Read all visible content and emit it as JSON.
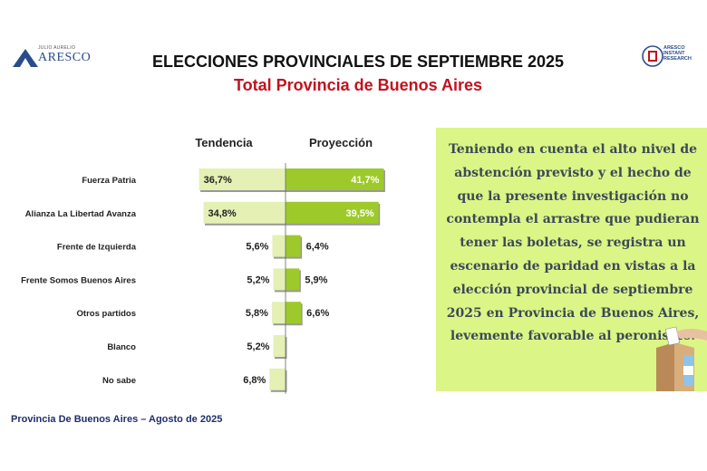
{
  "header": {
    "title": "ELECCIONES PROVINCIALES DE SEPTIEMBRE 2025",
    "subtitle": "Total Provincia de Buenos Aires"
  },
  "logos": {
    "left_small": "JULIO AURELIO",
    "left_big": "ARESCO",
    "right_lines": [
      "ARESCO",
      "INSTANT",
      "RESEARCH"
    ]
  },
  "chart_data": {
    "type": "bar",
    "categories": [
      "Fuerza Patria",
      "Alianza La Libertad Avanza",
      "Frente de Izquierda",
      "Frente Somos Buenos Aires",
      "Otros partidos",
      "Blanco",
      "No sabe"
    ],
    "series": [
      {
        "name": "Tendencia",
        "values": [
          36.7,
          34.8,
          5.6,
          5.2,
          5.8,
          5.2,
          6.8
        ],
        "labels": [
          "36,7%",
          "34,8%",
          "5,6%",
          "5,2%",
          "5,8%",
          "5,2%",
          "6,8%"
        ],
        "color": "#e4f0b4"
      },
      {
        "name": "Proyección",
        "values": [
          41.7,
          39.5,
          6.4,
          5.9,
          6.6,
          null,
          null
        ],
        "labels": [
          "41,7%",
          "39,5%",
          "6,4%",
          "5,9%",
          "6,6%",
          "",
          ""
        ],
        "color": "#9dca2a"
      }
    ],
    "grid": false
  },
  "note": {
    "text": "Teniendo en cuenta el alto nivel de abstención previsto y el hecho de que la presente investigación no contempla el arrastre que pudieran tener las boletas, se registra un escenario de paridad en vistas a la elección provincial de septiembre 2025 en Provincia de Buenos Aires, levemente favorable al peronismo."
  },
  "footer": {
    "text": "Provincia De Buenos Aires – Agosto de 2025"
  }
}
